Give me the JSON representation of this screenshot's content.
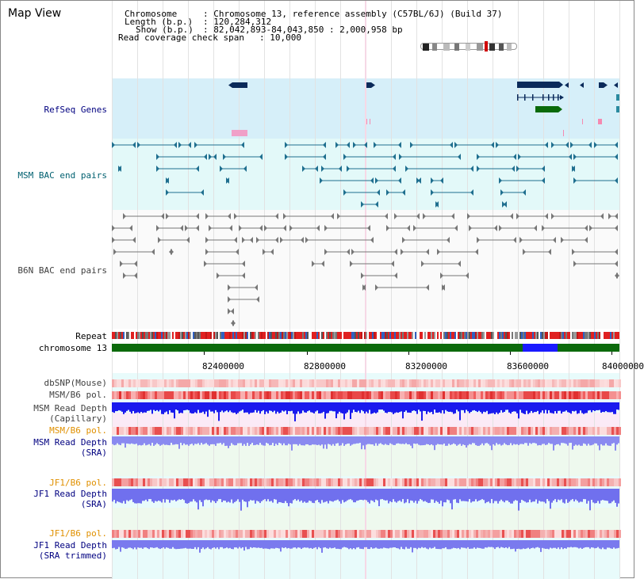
{
  "title": "Map View",
  "header": {
    "chromosome_label": "Chromosome",
    "chromosome_value": ": Chromosome 13, reference assembly (C57BL/6J) (Build 37)",
    "length_label": "Length (b.p.)",
    "length_value": ": 120,284,312",
    "show_label": "Show (b.p.)",
    "show_value": ": 82,042,893-84,043,850 : 2,000,958 bp",
    "coverage_label": "Read coverage check span",
    "coverage_value": ": 10,000"
  },
  "tracks": {
    "refseq": "RefSeq Genes",
    "msm_bac": "MSM BAC end pairs",
    "b6n_bac": "B6N BAC end pairs",
    "repeat": "Repeat",
    "chromosome": "chromosome 13",
    "dbsnp": "dbSNP(Mouse)",
    "msm_b6_pol": "MSM/B6 pol.",
    "msm_read_depth_cap_1": "MSM Read Depth",
    "msm_read_depth_cap_2": "(Capillary)",
    "msm_b6_pol_2": "MSM/B6 pol.",
    "msm_read_depth_sra_1": "MSM Read Depth",
    "msm_read_depth_sra_2": "(SRA)",
    "jf1_b6_pol": "JF1/B6 pol.",
    "jf1_read_depth_sra_1": "JF1 Read Depth",
    "jf1_read_depth_sra_2": "(SRA)",
    "jf1_b6_pol_2": "JF1/B6 pol.",
    "jf1_read_depth_trim_1": "JF1 Read Depth",
    "jf1_read_depth_trim_2": "(SRA trimmed)"
  },
  "axis": {
    "ticks": [
      "82400000",
      "82800000",
      "83200000",
      "83600000",
      "84000000"
    ]
  },
  "colors": {
    "refseq_bg": "#d8f0fa",
    "msm_bg": "#e4fafa",
    "gene_navy": "#0a2a5a",
    "gene_green": "#0a6a0a",
    "msm_feature": "#1f6f8f",
    "b6n_feature": "#777777",
    "label_blue": "#000080",
    "label_teal": "#006070",
    "label_gray": "#404040",
    "label_orange": "#e09000",
    "chromosome_green": "#0c6a0c",
    "chromosome_blue": "#1a1aff"
  }
}
